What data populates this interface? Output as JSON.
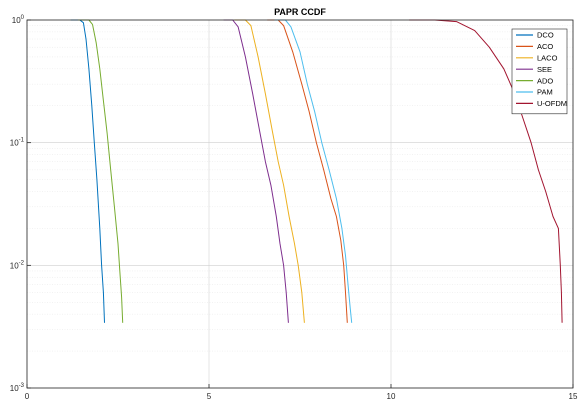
{
  "chart_data": {
    "type": "line",
    "title": "PAPR CCDF",
    "xlabel": "",
    "ylabel": "",
    "xlim": [
      0,
      15
    ],
    "ylim": [
      0.001,
      1
    ],
    "yscale": "log",
    "grid": true,
    "legend_position": "top-right",
    "x_ticks": [
      {
        "value": 0,
        "label": "0"
      },
      {
        "value": 5,
        "label": "5"
      },
      {
        "value": 10,
        "label": "10"
      },
      {
        "value": 15,
        "label": "15"
      }
    ],
    "y_ticks": [
      {
        "value": 0.001,
        "base": "10",
        "exp": "-3"
      },
      {
        "value": 0.01,
        "base": "10",
        "exp": "-2"
      },
      {
        "value": 0.1,
        "base": "10",
        "exp": "-1"
      },
      {
        "value": 1,
        "base": "10",
        "exp": "0"
      }
    ],
    "series": [
      {
        "name": "DCO",
        "color": "#0072BD",
        "points": [
          [
            1.2,
            1
          ],
          [
            1.45,
            1
          ],
          [
            1.55,
            0.95
          ],
          [
            1.62,
            0.7
          ],
          [
            1.7,
            0.4
          ],
          [
            1.78,
            0.2
          ],
          [
            1.85,
            0.1
          ],
          [
            1.92,
            0.05
          ],
          [
            2.0,
            0.02
          ],
          [
            2.05,
            0.01
          ],
          [
            2.1,
            0.006
          ],
          [
            2.13,
            0.0034
          ]
        ]
      },
      {
        "name": "ACO",
        "color": "#D95319",
        "points": [
          [
            6.6,
            1
          ],
          [
            6.9,
            1
          ],
          [
            7.05,
            0.9
          ],
          [
            7.3,
            0.55
          ],
          [
            7.55,
            0.3
          ],
          [
            7.75,
            0.18
          ],
          [
            7.95,
            0.1
          ],
          [
            8.15,
            0.06
          ],
          [
            8.35,
            0.035
          ],
          [
            8.5,
            0.025
          ],
          [
            8.62,
            0.016
          ],
          [
            8.7,
            0.01
          ],
          [
            8.75,
            0.006
          ],
          [
            8.8,
            0.0034
          ]
        ]
      },
      {
        "name": "LACO",
        "color": "#EDB120",
        "points": [
          [
            5.7,
            1
          ],
          [
            6.0,
            1
          ],
          [
            6.15,
            0.9
          ],
          [
            6.35,
            0.5
          ],
          [
            6.55,
            0.25
          ],
          [
            6.75,
            0.12
          ],
          [
            6.9,
            0.07
          ],
          [
            7.05,
            0.045
          ],
          [
            7.2,
            0.025
          ],
          [
            7.35,
            0.015
          ],
          [
            7.45,
            0.01
          ],
          [
            7.55,
            0.006
          ],
          [
            7.62,
            0.0034
          ]
        ]
      },
      {
        "name": "SEE",
        "color": "#7E2F8E",
        "points": [
          [
            5.4,
            1
          ],
          [
            5.65,
            1
          ],
          [
            5.8,
            0.88
          ],
          [
            6.0,
            0.5
          ],
          [
            6.2,
            0.25
          ],
          [
            6.4,
            0.12
          ],
          [
            6.55,
            0.07
          ],
          [
            6.7,
            0.045
          ],
          [
            6.85,
            0.025
          ],
          [
            6.95,
            0.015
          ],
          [
            7.05,
            0.01
          ],
          [
            7.12,
            0.006
          ],
          [
            7.18,
            0.0034
          ]
        ]
      },
      {
        "name": "ADO",
        "color": "#77AC30",
        "points": [
          [
            1.4,
            1
          ],
          [
            1.7,
            1
          ],
          [
            1.8,
            0.92
          ],
          [
            1.9,
            0.65
          ],
          [
            2.0,
            0.4
          ],
          [
            2.1,
            0.22
          ],
          [
            2.2,
            0.12
          ],
          [
            2.3,
            0.06
          ],
          [
            2.4,
            0.03
          ],
          [
            2.5,
            0.015
          ],
          [
            2.55,
            0.009
          ],
          [
            2.6,
            0.0055
          ],
          [
            2.63,
            0.0034
          ]
        ]
      },
      {
        "name": "PAM",
        "color": "#4DBEEE",
        "points": [
          [
            6.8,
            1
          ],
          [
            7.1,
            1
          ],
          [
            7.25,
            0.88
          ],
          [
            7.5,
            0.55
          ],
          [
            7.7,
            0.3
          ],
          [
            7.9,
            0.18
          ],
          [
            8.1,
            0.1
          ],
          [
            8.3,
            0.06
          ],
          [
            8.5,
            0.035
          ],
          [
            8.65,
            0.02
          ],
          [
            8.75,
            0.012
          ],
          [
            8.82,
            0.007
          ],
          [
            8.88,
            0.0045
          ],
          [
            8.92,
            0.0034
          ]
        ]
      },
      {
        "name": "U-OFDM",
        "color": "#A2142F",
        "points": [
          [
            10.5,
            1
          ],
          [
            11.2,
            1
          ],
          [
            11.8,
            0.97
          ],
          [
            12.3,
            0.82
          ],
          [
            12.7,
            0.6
          ],
          [
            13.1,
            0.4
          ],
          [
            13.4,
            0.25
          ],
          [
            13.65,
            0.15
          ],
          [
            13.85,
            0.1
          ],
          [
            14.05,
            0.06
          ],
          [
            14.25,
            0.04
          ],
          [
            14.45,
            0.025
          ],
          [
            14.6,
            0.02
          ],
          [
            14.65,
            0.01
          ],
          [
            14.68,
            0.006
          ],
          [
            14.7,
            0.0034
          ]
        ]
      }
    ]
  }
}
